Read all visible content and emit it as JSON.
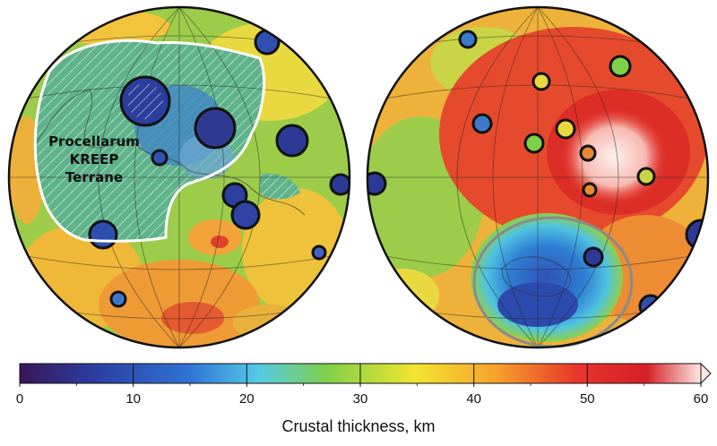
{
  "figure": {
    "region_label": [
      "Procellarum",
      "KREEP",
      "Terrane"
    ],
    "colorbar": {
      "title": "Crustal thickness, km",
      "min": 0,
      "max": 60,
      "ticks": [
        "0",
        "10",
        "20",
        "30",
        "40",
        "50",
        "60"
      ],
      "colors": [
        "#3a1656",
        "#2c3a9c",
        "#2f74d6",
        "#55c9e6",
        "#7ed04a",
        "#f2e530",
        "#f7a12c",
        "#e8352a",
        "#d61f26",
        "#fbe8e4"
      ]
    }
  }
}
